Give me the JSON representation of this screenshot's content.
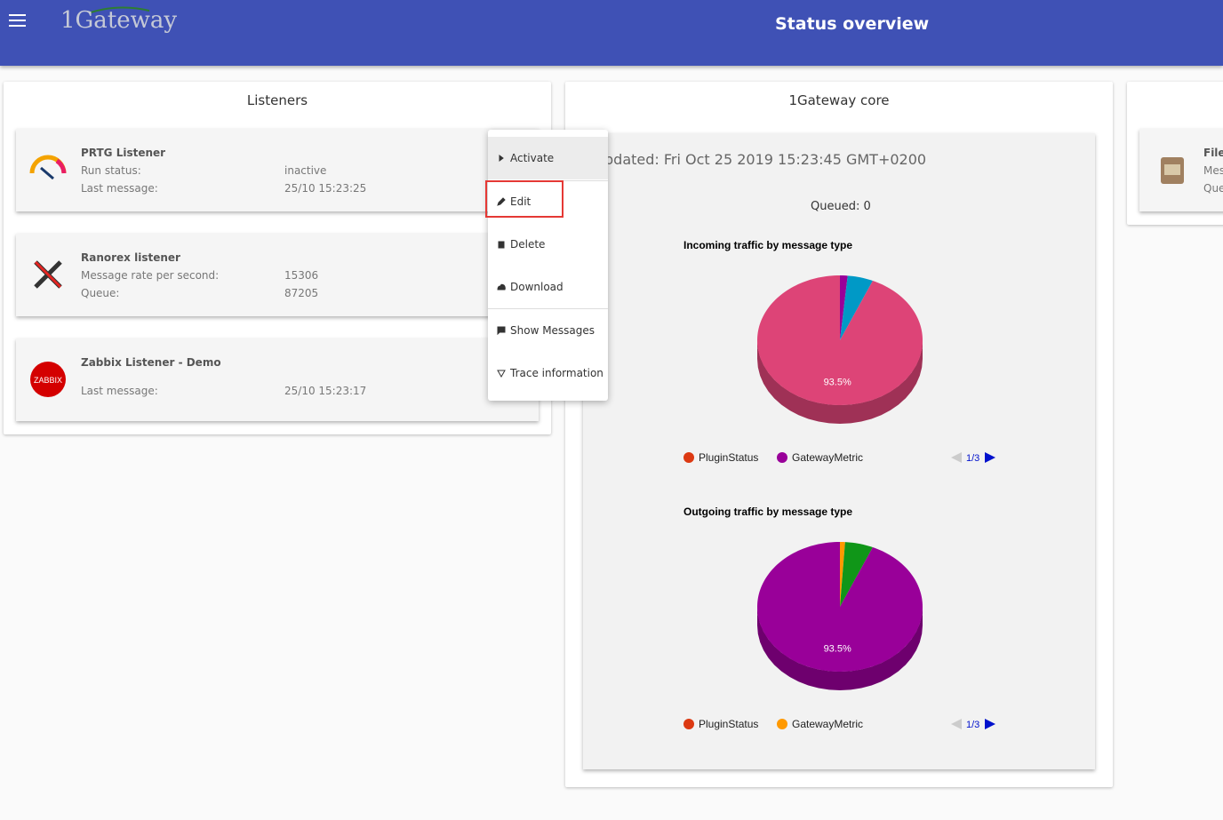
{
  "header": {
    "logo": "1Gateway",
    "title": "Status overview"
  },
  "listeners": {
    "title": "Listeners",
    "items": [
      {
        "name": "PRTG Listener",
        "fields": [
          {
            "label": "Run status:",
            "value": "inactive"
          },
          {
            "label": "Last message:",
            "value": "25/10 15:23:25"
          }
        ]
      },
      {
        "name": "Ranorex listener",
        "fields": [
          {
            "label": "Message rate per second:",
            "value": "15306"
          },
          {
            "label": "Queue:",
            "value": "87205"
          }
        ]
      },
      {
        "name": "Zabbix Listener - Demo",
        "icon_text": "ZABBIX",
        "fields": [
          {
            "label": "Last message:",
            "value": "25/10 15:23:17"
          }
        ]
      }
    ]
  },
  "menu": {
    "items": [
      "Activate",
      "Edit",
      "Delete",
      "Download",
      "Show Messages",
      "Trace information"
    ],
    "highlighted": 1
  },
  "core": {
    "title": "1Gateway core",
    "updated": "pdated: Fri Oct 25 2019 15:23:45 GMT+0200",
    "queued": "Queued: 0"
  },
  "side_card": {
    "lines": [
      "File",
      "Mes",
      "Que"
    ]
  },
  "chart_data": [
    {
      "type": "pie",
      "title": "Incoming traffic by message type",
      "categories": [
        "PluginStatus",
        "GatewayMetric",
        null,
        null
      ],
      "values": [
        0,
        1.5,
        5,
        93.5
      ],
      "value_labels": [
        null,
        null,
        null,
        "93.5%"
      ],
      "colors": [
        "#dc3912",
        "#990099",
        "#0099c6",
        "#dd4477"
      ],
      "legend_page": "1/3"
    },
    {
      "type": "pie",
      "title": "Outgoing traffic by message type",
      "categories": [
        "PluginStatus",
        "GatewayMetric",
        null,
        null
      ],
      "values": [
        0,
        1,
        5.5,
        93.5
      ],
      "value_labels": [
        null,
        null,
        null,
        "93.5%"
      ],
      "colors": [
        "#dc3912",
        "#ff9900",
        "#109618",
        "#990099"
      ],
      "legend_page": "1/3"
    }
  ]
}
